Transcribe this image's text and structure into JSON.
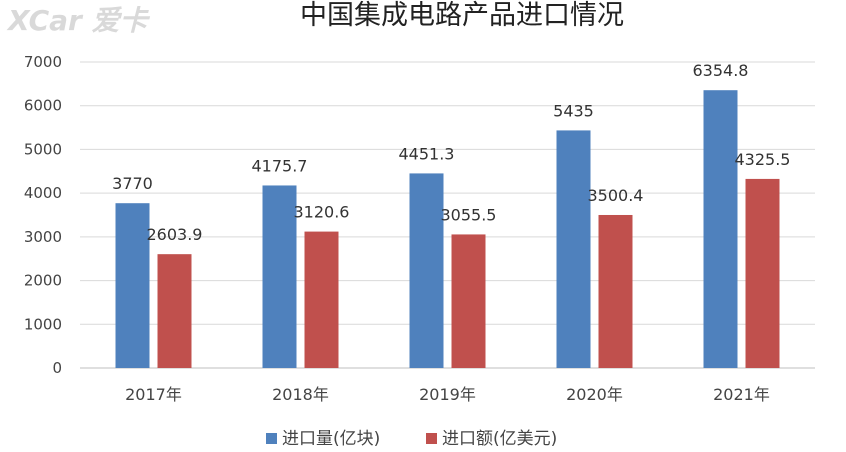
{
  "watermark": "XCar 爱卡",
  "colors": {
    "series0": "#4F81BD",
    "series1": "#C0504D",
    "grid": "#d9d9d9"
  },
  "chart_data": {
    "type": "bar",
    "title": "中国集成电路产品进口情况",
    "categories": [
      "2017年",
      "2018年",
      "2019年",
      "2020年",
      "2021年"
    ],
    "series": [
      {
        "name": "进口量(亿块)",
        "values": [
          3770,
          4175.7,
          4451.3,
          5435,
          6354.8
        ],
        "labels": [
          "3770",
          "4175.7",
          "4451.3",
          "5435",
          "6354.8"
        ]
      },
      {
        "name": "进口额(亿美元)",
        "values": [
          2603.9,
          3120.6,
          3055.5,
          3500.4,
          4325.5
        ],
        "labels": [
          "2603.9",
          "3120.6",
          "3055.5",
          "3500.4",
          "4325.5"
        ]
      }
    ],
    "ylim": [
      0,
      7000
    ],
    "yticks": [
      0,
      1000,
      2000,
      3000,
      4000,
      5000,
      6000,
      7000
    ],
    "grid": true,
    "legend": "bottom"
  }
}
